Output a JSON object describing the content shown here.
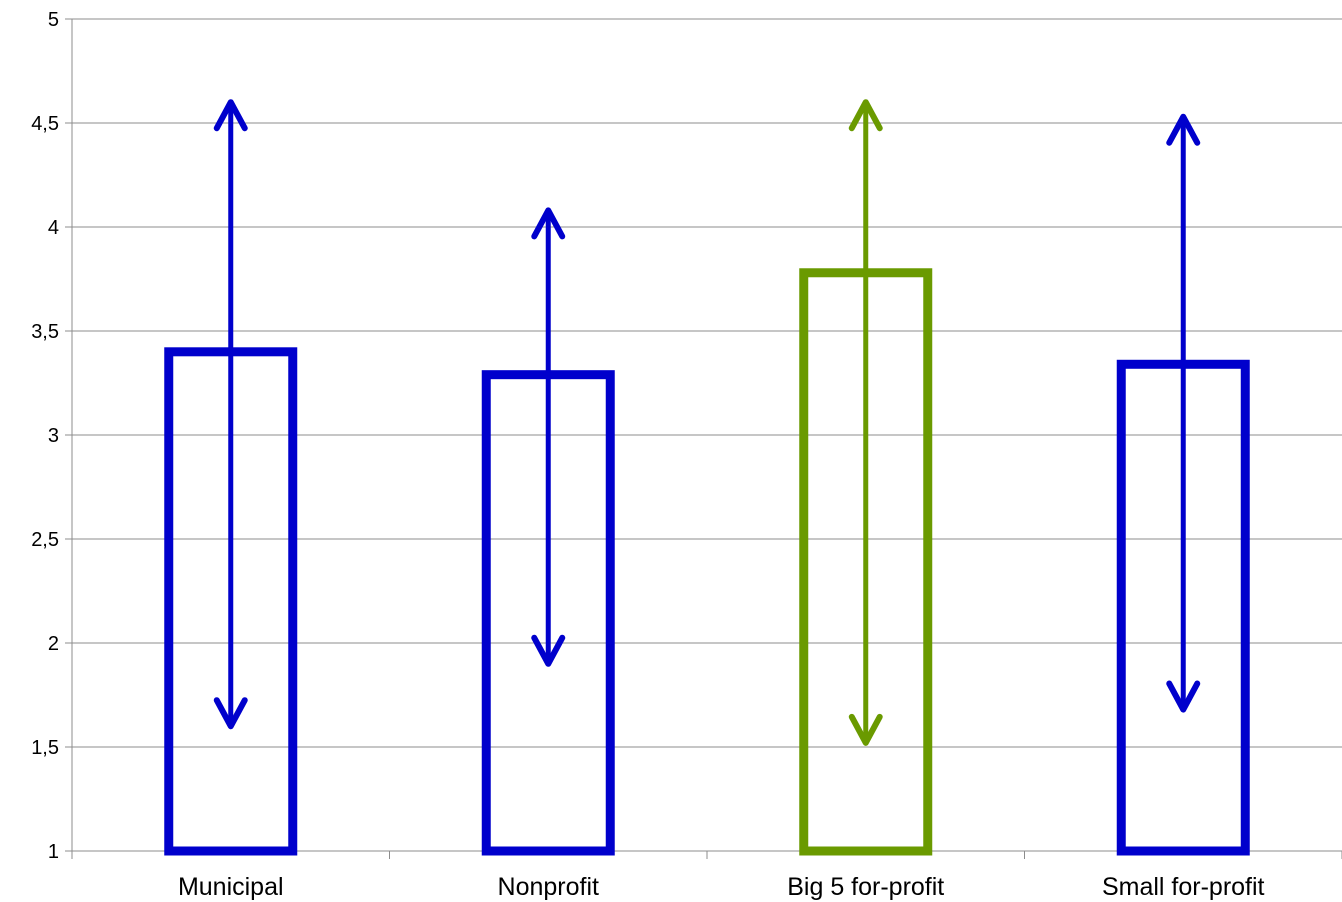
{
  "chart_data": {
    "type": "bar",
    "title": "",
    "xlabel": "",
    "ylabel": "",
    "ylim": [
      1,
      5
    ],
    "yticks": [
      "1",
      "1,5",
      "2",
      "2,5",
      "3",
      "3,5",
      "4",
      "4,5",
      "5"
    ],
    "ytick_values": [
      1,
      1.5,
      2,
      2.5,
      3,
      3.5,
      4,
      4.5,
      5
    ],
    "grid": true,
    "categories": [
      "Municipal",
      "Nonprofit",
      "Big 5 for-profit",
      "Small for-profit"
    ],
    "values": [
      3.4,
      3.29,
      3.78,
      3.34
    ],
    "range_high": [
      4.6,
      4.08,
      4.6,
      4.53
    ],
    "range_low": [
      1.6,
      1.9,
      1.52,
      1.68
    ],
    "colors": [
      "#0000cc",
      "#0000cc",
      "#6a9a00",
      "#0000cc"
    ],
    "bar_style": "outline"
  }
}
